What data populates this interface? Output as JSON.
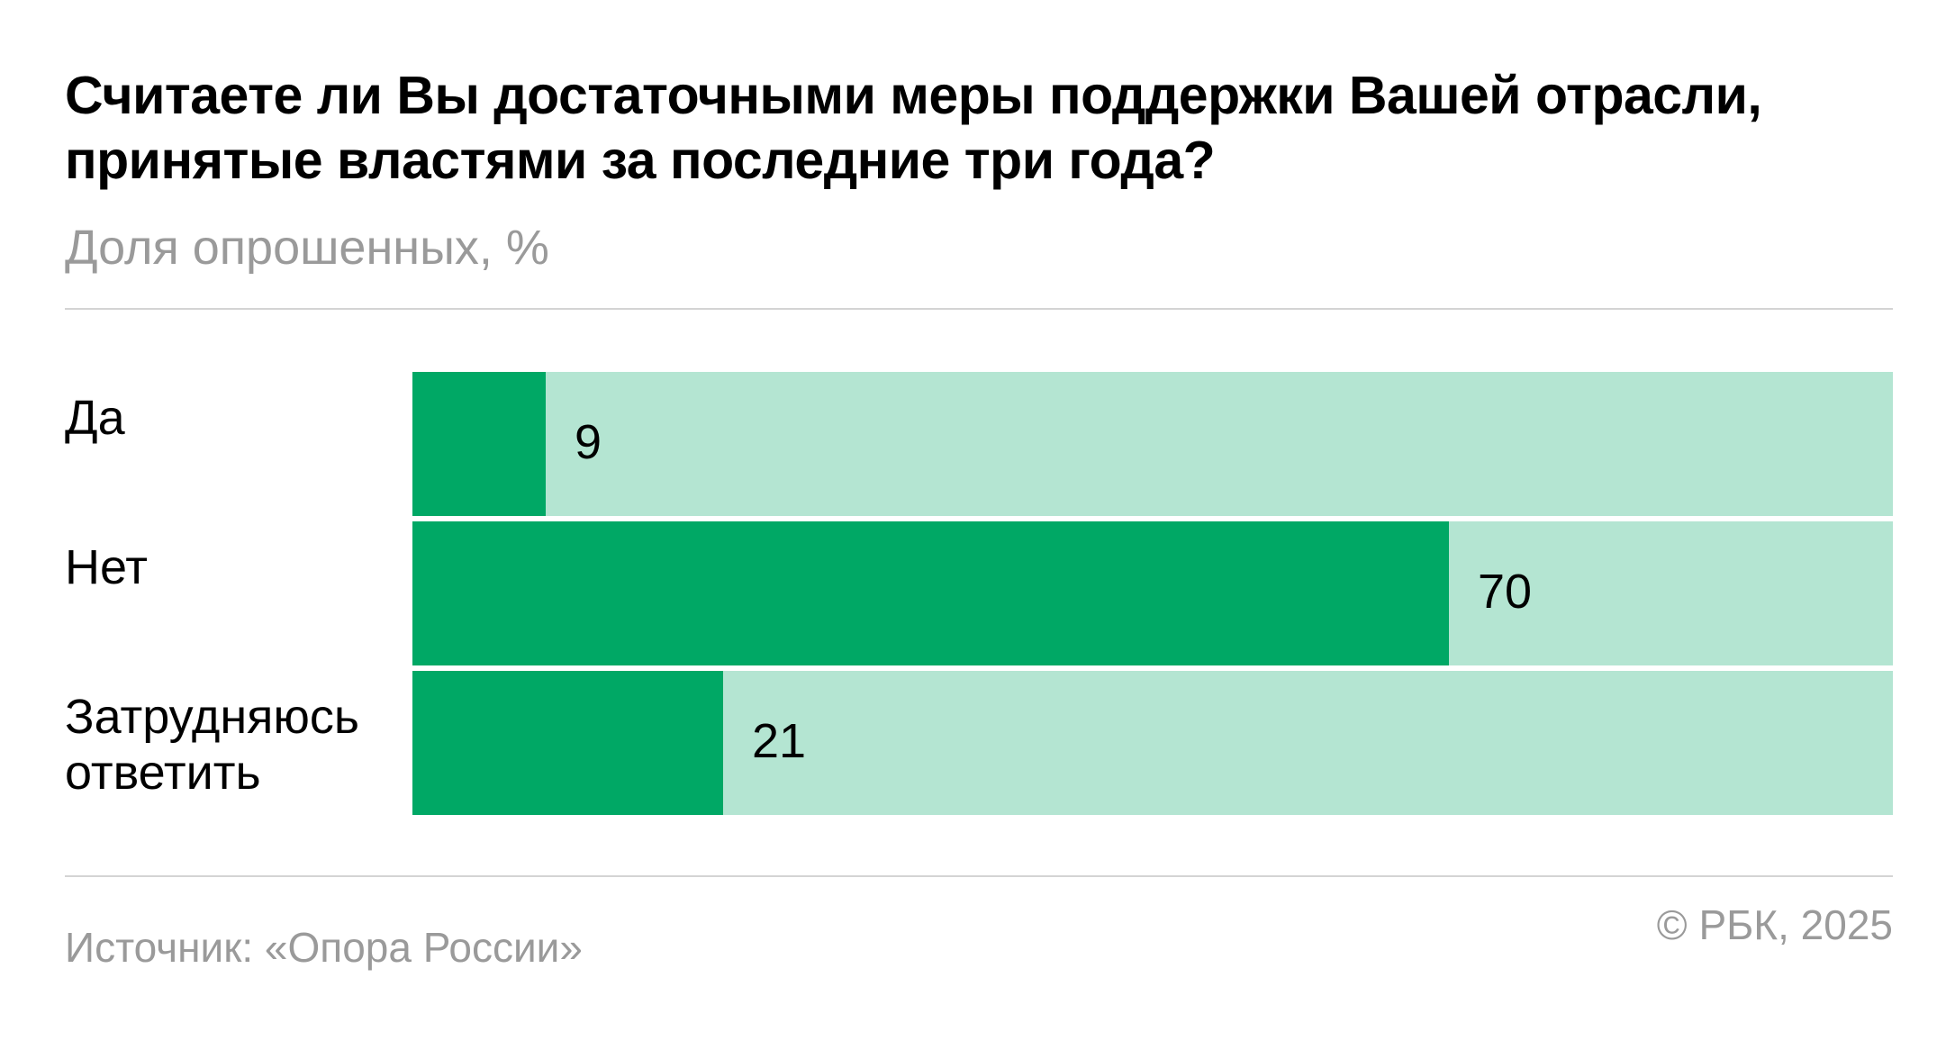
{
  "title": "Считаете ли Вы достаточными меры поддержки Вашей отрасли, принятые властями за последние три года?",
  "subtitle": "Доля опрошенных, %",
  "source": "Источник: «Опора России»",
  "copyright": "© РБК, 2025",
  "colors": {
    "bar_fill": "#00a865",
    "bar_track": "#b4e5d2",
    "muted_text": "#9a9a9a",
    "rule": "#d4d4d4"
  },
  "chart_data": {
    "type": "bar",
    "orientation": "horizontal",
    "stacked_background": true,
    "categories": [
      "Да",
      "Нет",
      "Затрудняюсь ответить"
    ],
    "values": [
      9,
      70,
      21
    ],
    "value_labels": [
      "9",
      "70",
      "21"
    ],
    "xlim": [
      0,
      100
    ],
    "title": "Считаете ли Вы достаточными меры поддержки Вашей отрасли, принятые властями за последние три года?",
    "subtitle": "Доля опрошенных, %",
    "grid": false,
    "legend": "none"
  }
}
